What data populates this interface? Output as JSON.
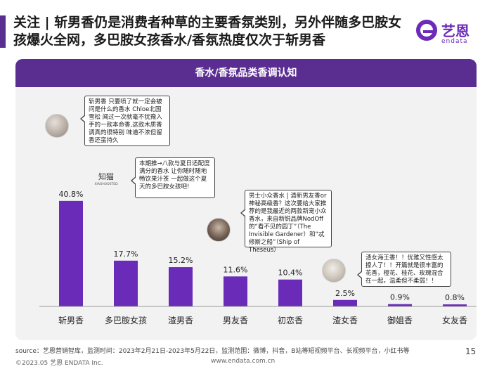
{
  "header": {
    "title": "关注 | 斩男香仍是消费者种草的主要香氛类别，另外伴随多巴胺女孩爆火全网，多巴胺女孩香水/香氛热度仅次于斩男香",
    "logo_cn": "艺恩",
    "logo_en": "endata"
  },
  "chart_data": {
    "type": "bar",
    "title": "香水/香氛品类香调认知",
    "categories": [
      "斩男香",
      "多巴胺女孩",
      "渣男香",
      "男友香",
      "初恋香",
      "渣女香",
      "御姐香",
      "女友香"
    ],
    "values": [
      40.8,
      17.7,
      15.2,
      11.6,
      10.4,
      2.5,
      0.9,
      0.8
    ],
    "value_labels": [
      "40.8%",
      "17.7%",
      "15.2%",
      "11.6%",
      "10.4%",
      "2.5%",
      "0.9%",
      "0.8%"
    ],
    "ylim": [
      0,
      50
    ],
    "bar_color": "#6a2bb8",
    "grid": false
  },
  "annotations": {
    "a1": "斩男香 只要喷了就一定会被问是什么的香水 Chloe北国雪松 闻过一次就毫不犹豫入手的一款本命香,这款木质香调真的很特别 味道不浓但留香还蛮持久",
    "a2": "本期推→八款与夏日适配度满分的香水 让你随时随地畅饮果汁茶 一起做这个夏天的多巴胺女孩吧!",
    "a2_logo_cn": "知猫",
    "a2_logo_en": "XIAOHUOSTED",
    "a3": "男士小众香水 | 清新男友香or神秘高级香？这次要给大家推荐的是我最近的两款新宠小众香水，来自新锐品牌NodOff的“看不见的园丁”（The Invisible Gardener）和“忒修斯之船”（Ship of Theseus）",
    "a4": "渣女海王香！！优雅又性感太撩人了！！开篇就是很丰富的花香，橙花、桂花、玫瑰混合在一起，温柔但不柔弱！！"
  },
  "footer": {
    "source": "source：艺恩营销智库，监测时间：2023年2月21日-2023年5月22日，监测范围：微博，抖音，B站等短视频平台、长视频平台，小红书等",
    "copyright": "©2023.05 艺恩 ENDATA Inc.",
    "website": "www.endata.com.cn",
    "page": "15"
  }
}
